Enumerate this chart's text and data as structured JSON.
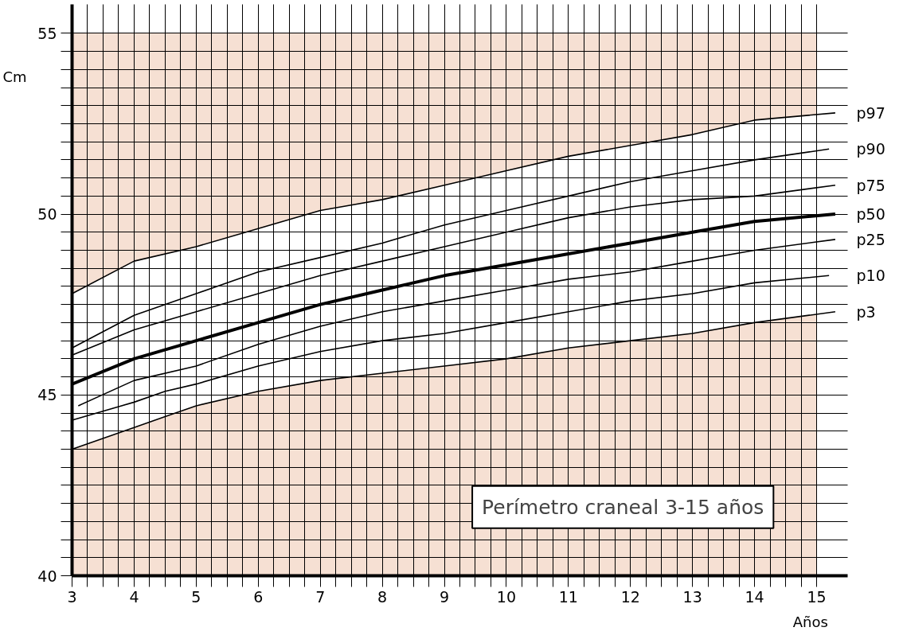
{
  "chart_data": {
    "type": "line",
    "title": "Perímetro craneal 3-15 años",
    "xlabel": "Años",
    "ylabel": "Cm",
    "series": [
      {
        "name": "p97",
        "color": "#000000",
        "x": [
          3,
          4,
          5,
          6,
          7,
          8,
          9,
          10,
          11,
          12,
          13,
          14,
          15.3
        ],
        "values": [
          47.8,
          48.7,
          49.1,
          49.6,
          50.1,
          50.4,
          50.8,
          51.2,
          51.6,
          51.9,
          52.2,
          52.6,
          52.8
        ]
      },
      {
        "name": "p90",
        "color": "#000000",
        "x": [
          3,
          4,
          5,
          6,
          7,
          8,
          9,
          10,
          11,
          12,
          13,
          14,
          15.2
        ],
        "values": [
          46.3,
          47.2,
          47.8,
          48.4,
          48.8,
          49.2,
          49.7,
          50.1,
          50.5,
          50.9,
          51.2,
          51.5,
          51.8
        ]
      },
      {
        "name": "p75",
        "color": "#000000",
        "x": [
          3,
          4,
          5,
          6,
          7,
          8,
          9,
          10,
          11,
          12,
          13,
          14,
          15.3
        ],
        "values": [
          46.1,
          46.8,
          47.3,
          47.8,
          48.3,
          48.7,
          49.1,
          49.5,
          49.9,
          50.2,
          50.4,
          50.5,
          50.8
        ]
      },
      {
        "name": "p50",
        "color": "#000000",
        "x": [
          3,
          4,
          5,
          6,
          7,
          8,
          9,
          10,
          11,
          12,
          13,
          14,
          15.3
        ],
        "values": [
          45.3,
          46.0,
          46.5,
          47.0,
          47.5,
          47.9,
          48.3,
          48.6,
          48.9,
          49.2,
          49.5,
          49.8,
          50.0
        ],
        "lower": [
          43.5,
          44.1,
          44.7,
          45.1,
          45.4,
          45.6,
          45.8,
          46.0,
          46.3,
          46.5,
          46.7,
          47.0,
          47.3
        ],
        "upper": [
          47.8,
          48.7,
          49.1,
          49.6,
          50.1,
          50.4,
          50.8,
          51.2,
          51.6,
          51.9,
          52.2,
          52.6,
          52.8
        ]
      },
      {
        "name": "p25",
        "color": "#000000",
        "x": [
          3.1,
          4,
          5,
          6,
          7,
          8,
          9,
          10,
          11,
          12,
          13,
          14,
          15.3
        ],
        "values": [
          44.7,
          45.4,
          45.8,
          46.4,
          46.9,
          47.3,
          47.6,
          47.9,
          48.2,
          48.4,
          48.7,
          49.0,
          49.3
        ]
      },
      {
        "name": "p10",
        "color": "#000000",
        "x": [
          3,
          4,
          4.5,
          5,
          6,
          7,
          8,
          9,
          10,
          11,
          12,
          13,
          14,
          15.2
        ],
        "values": [
          44.3,
          44.8,
          45.1,
          45.3,
          45.8,
          46.2,
          46.5,
          46.7,
          47.0,
          47.3,
          47.6,
          47.8,
          48.1,
          48.3
        ]
      },
      {
        "name": "p3",
        "color": "#000000",
        "x": [
          3,
          4,
          4.5,
          5,
          6,
          7,
          8,
          9,
          10,
          11,
          12,
          13,
          14,
          15.3
        ],
        "values": [
          43.5,
          44.1,
          44.4,
          44.7,
          45.1,
          45.4,
          45.6,
          45.8,
          46.0,
          46.3,
          46.5,
          46.7,
          47.0,
          47.3
        ]
      }
    ],
    "bands": [
      {
        "axis": "y",
        "from": 40,
        "to": 55,
        "color": "#f6e0d3"
      }
    ],
    "xlim": [
      3,
      15.5
    ],
    "ylim": [
      40,
      55.8
    ],
    "xticks": [
      3,
      {
        "value": 3.25,
        "label": null
      },
      {
        "value": 3.5,
        "label": null
      },
      {
        "value": 3.75,
        "label": null
      },
      4,
      {
        "value": 4.25,
        "label": null
      },
      {
        "value": 4.5,
        "label": null
      },
      {
        "value": 4.75,
        "label": null
      },
      5,
      {
        "value": 5.25,
        "label": null
      },
      {
        "value": 5.5,
        "label": null
      },
      {
        "value": 5.75,
        "label": null
      },
      6,
      {
        "value": 6.25,
        "label": null
      },
      {
        "value": 6.5,
        "label": null
      },
      {
        "value": 6.75,
        "label": null
      },
      7,
      {
        "value": 7.25,
        "label": null
      },
      {
        "value": 7.5,
        "label": null
      },
      {
        "value": 7.75,
        "label": null
      },
      8,
      {
        "value": 8.25,
        "label": null
      },
      {
        "value": 8.5,
        "label": null
      },
      {
        "value": 8.75,
        "label": null
      },
      9,
      {
        "value": 9.25,
        "label": null
      },
      {
        "value": 9.5,
        "label": null
      },
      {
        "value": 9.75,
        "label": null
      },
      10,
      {
        "value": 10.25,
        "label": null
      },
      {
        "value": 10.5,
        "label": null
      },
      {
        "value": 10.75,
        "label": null
      },
      11,
      {
        "value": 11.25,
        "label": null
      },
      {
        "value": 11.5,
        "label": null
      },
      {
        "value": 11.75,
        "label": null
      },
      12,
      {
        "value": 12.25,
        "label": null
      },
      {
        "value": 12.5,
        "label": null
      },
      {
        "value": 12.75,
        "label": null
      },
      13,
      {
        "value": 13.25,
        "label": null
      },
      {
        "value": 13.5,
        "label": null
      },
      {
        "value": 13.75,
        "label": null
      },
      14,
      {
        "value": 14.25,
        "label": null
      },
      {
        "value": 14.5,
        "label": null
      },
      {
        "value": 14.75,
        "label": null
      },
      15
    ],
    "yticks": [
      40,
      {
        "value": 40.5,
        "label": null
      },
      {
        "value": 41,
        "label": null
      },
      {
        "value": 41.5,
        "label": null
      },
      {
        "value": 42,
        "label": null
      },
      {
        "value": 42.5,
        "label": null
      },
      {
        "value": 43,
        "label": null
      },
      {
        "value": 43.5,
        "label": null
      },
      {
        "value": 44,
        "label": null
      },
      {
        "value": 44.5,
        "label": null
      },
      45,
      {
        "value": 45.5,
        "label": null
      },
      {
        "value": 46,
        "label": null
      },
      {
        "value": 46.5,
        "label": null
      },
      {
        "value": 47,
        "label": null
      },
      {
        "value": 47.5,
        "label": null
      },
      {
        "value": 48,
        "label": null
      },
      {
        "value": 48.5,
        "label": null
      },
      {
        "value": 49,
        "label": null
      },
      {
        "value": 49.5,
        "label": null
      },
      50,
      {
        "value": 50.5,
        "label": null
      },
      {
        "value": 51,
        "label": null
      },
      {
        "value": 51.5,
        "label": null
      },
      {
        "value": 52,
        "label": null
      },
      {
        "value": 52.5,
        "label": null
      },
      {
        "value": 53,
        "label": null
      },
      {
        "value": 53.5,
        "label": null
      },
      {
        "value": 54,
        "label": null
      },
      {
        "value": 54.5,
        "label": null
      },
      55
    ],
    "grid": true,
    "marker": "none",
    "line_style": "solid"
  }
}
